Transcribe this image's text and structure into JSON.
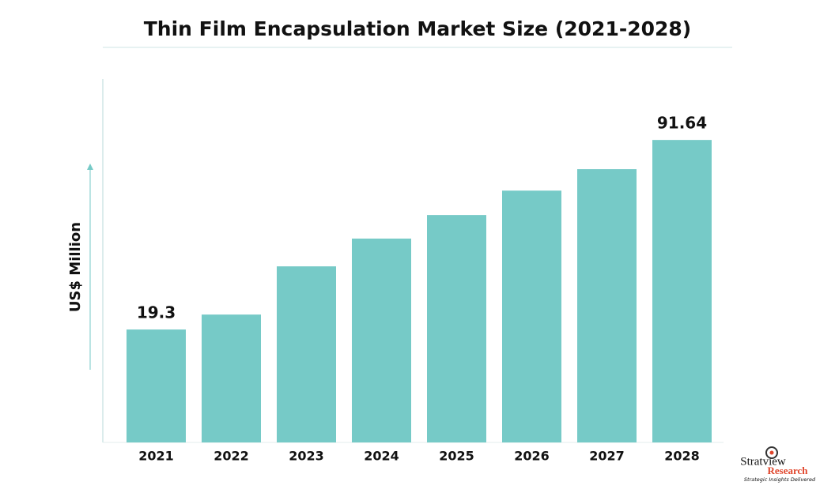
{
  "chart_data": {
    "type": "bar",
    "title": "Thin Film Encapsulation Market Size (2021-2028)",
    "y_label": "US$ Million",
    "categories": [
      "2021",
      "2022",
      "2023",
      "2024",
      "2025",
      "2026",
      "2027",
      "2028"
    ],
    "values": [
      19.3,
      25.0,
      43.4,
      54.0,
      63.0,
      72.3,
      80.5,
      91.64
    ],
    "value_labels": [
      "19.3",
      null,
      null,
      null,
      null,
      null,
      null,
      "91.64"
    ],
    "color": "#76cac7",
    "ylim": [
      -23.8,
      114.9
    ]
  },
  "logo": {
    "name": "Stratview",
    "sub": "Research",
    "tagline": "Strategic Insights Delivered"
  }
}
